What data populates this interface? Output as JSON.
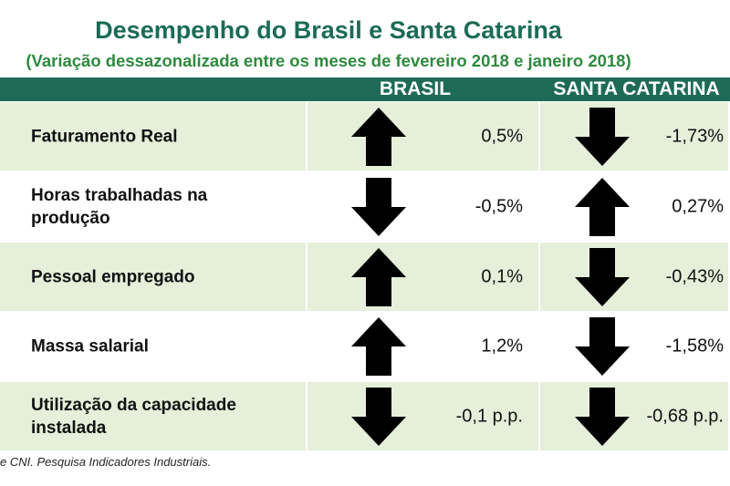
{
  "title": "Desempenho do Brasil e Santa Catarina",
  "subtitle": "(Variação dessazonalizada entre os meses de fevereiro 2018 e janeiro 2018)",
  "table": {
    "columns": [
      "BRASIL",
      "SANTA CATARINA"
    ],
    "rows": [
      [
        "Faturamento Real",
        "0,5%",
        "-1,73%"
      ],
      [
        "Horas trabalhadas na produção",
        "-0,5%",
        "0,27%"
      ],
      [
        "Pessoal empregado",
        "0,1%",
        "-0,43%"
      ],
      [
        "Massa salarial",
        "1,2%",
        "-1,58%"
      ],
      [
        "Utilização da capacidade instalada",
        "-0,1 p.p.",
        "-0,68 p.p."
      ]
    ]
  },
  "footer": "e CNI. Pesquisa Indicadores Industriais."
}
